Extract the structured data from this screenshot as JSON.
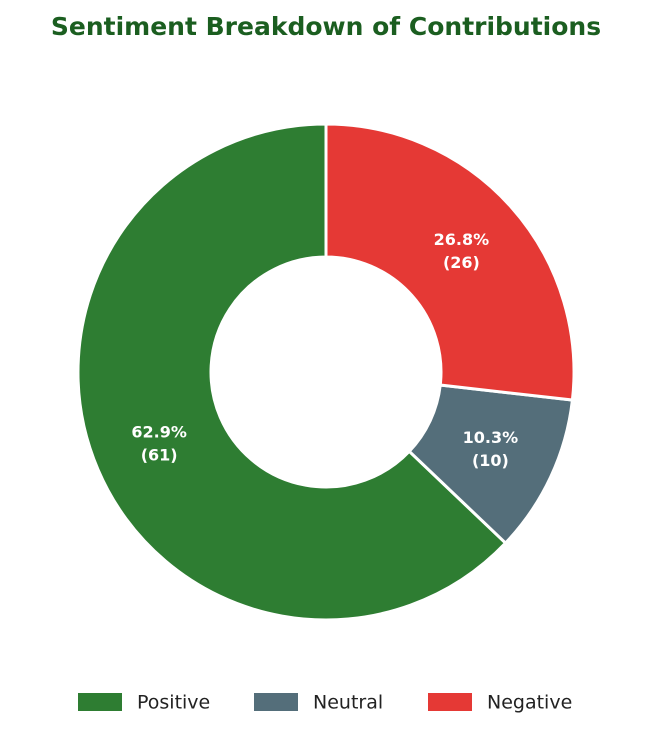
{
  "chart_data": {
    "type": "donut",
    "title": "Sentiment Breakdown of Contributions",
    "categories": [
      "Positive",
      "Neutral",
      "Negative"
    ],
    "values": [
      61,
      10,
      26
    ],
    "colors": [
      "#2e7d32",
      "#546e7a",
      "#e53935"
    ],
    "value_labels": [
      [
        "62.9%",
        "(61)"
      ],
      [
        "10.3%",
        "(10)"
      ],
      [
        "26.8%",
        "(26)"
      ]
    ],
    "legend": "bottom"
  }
}
